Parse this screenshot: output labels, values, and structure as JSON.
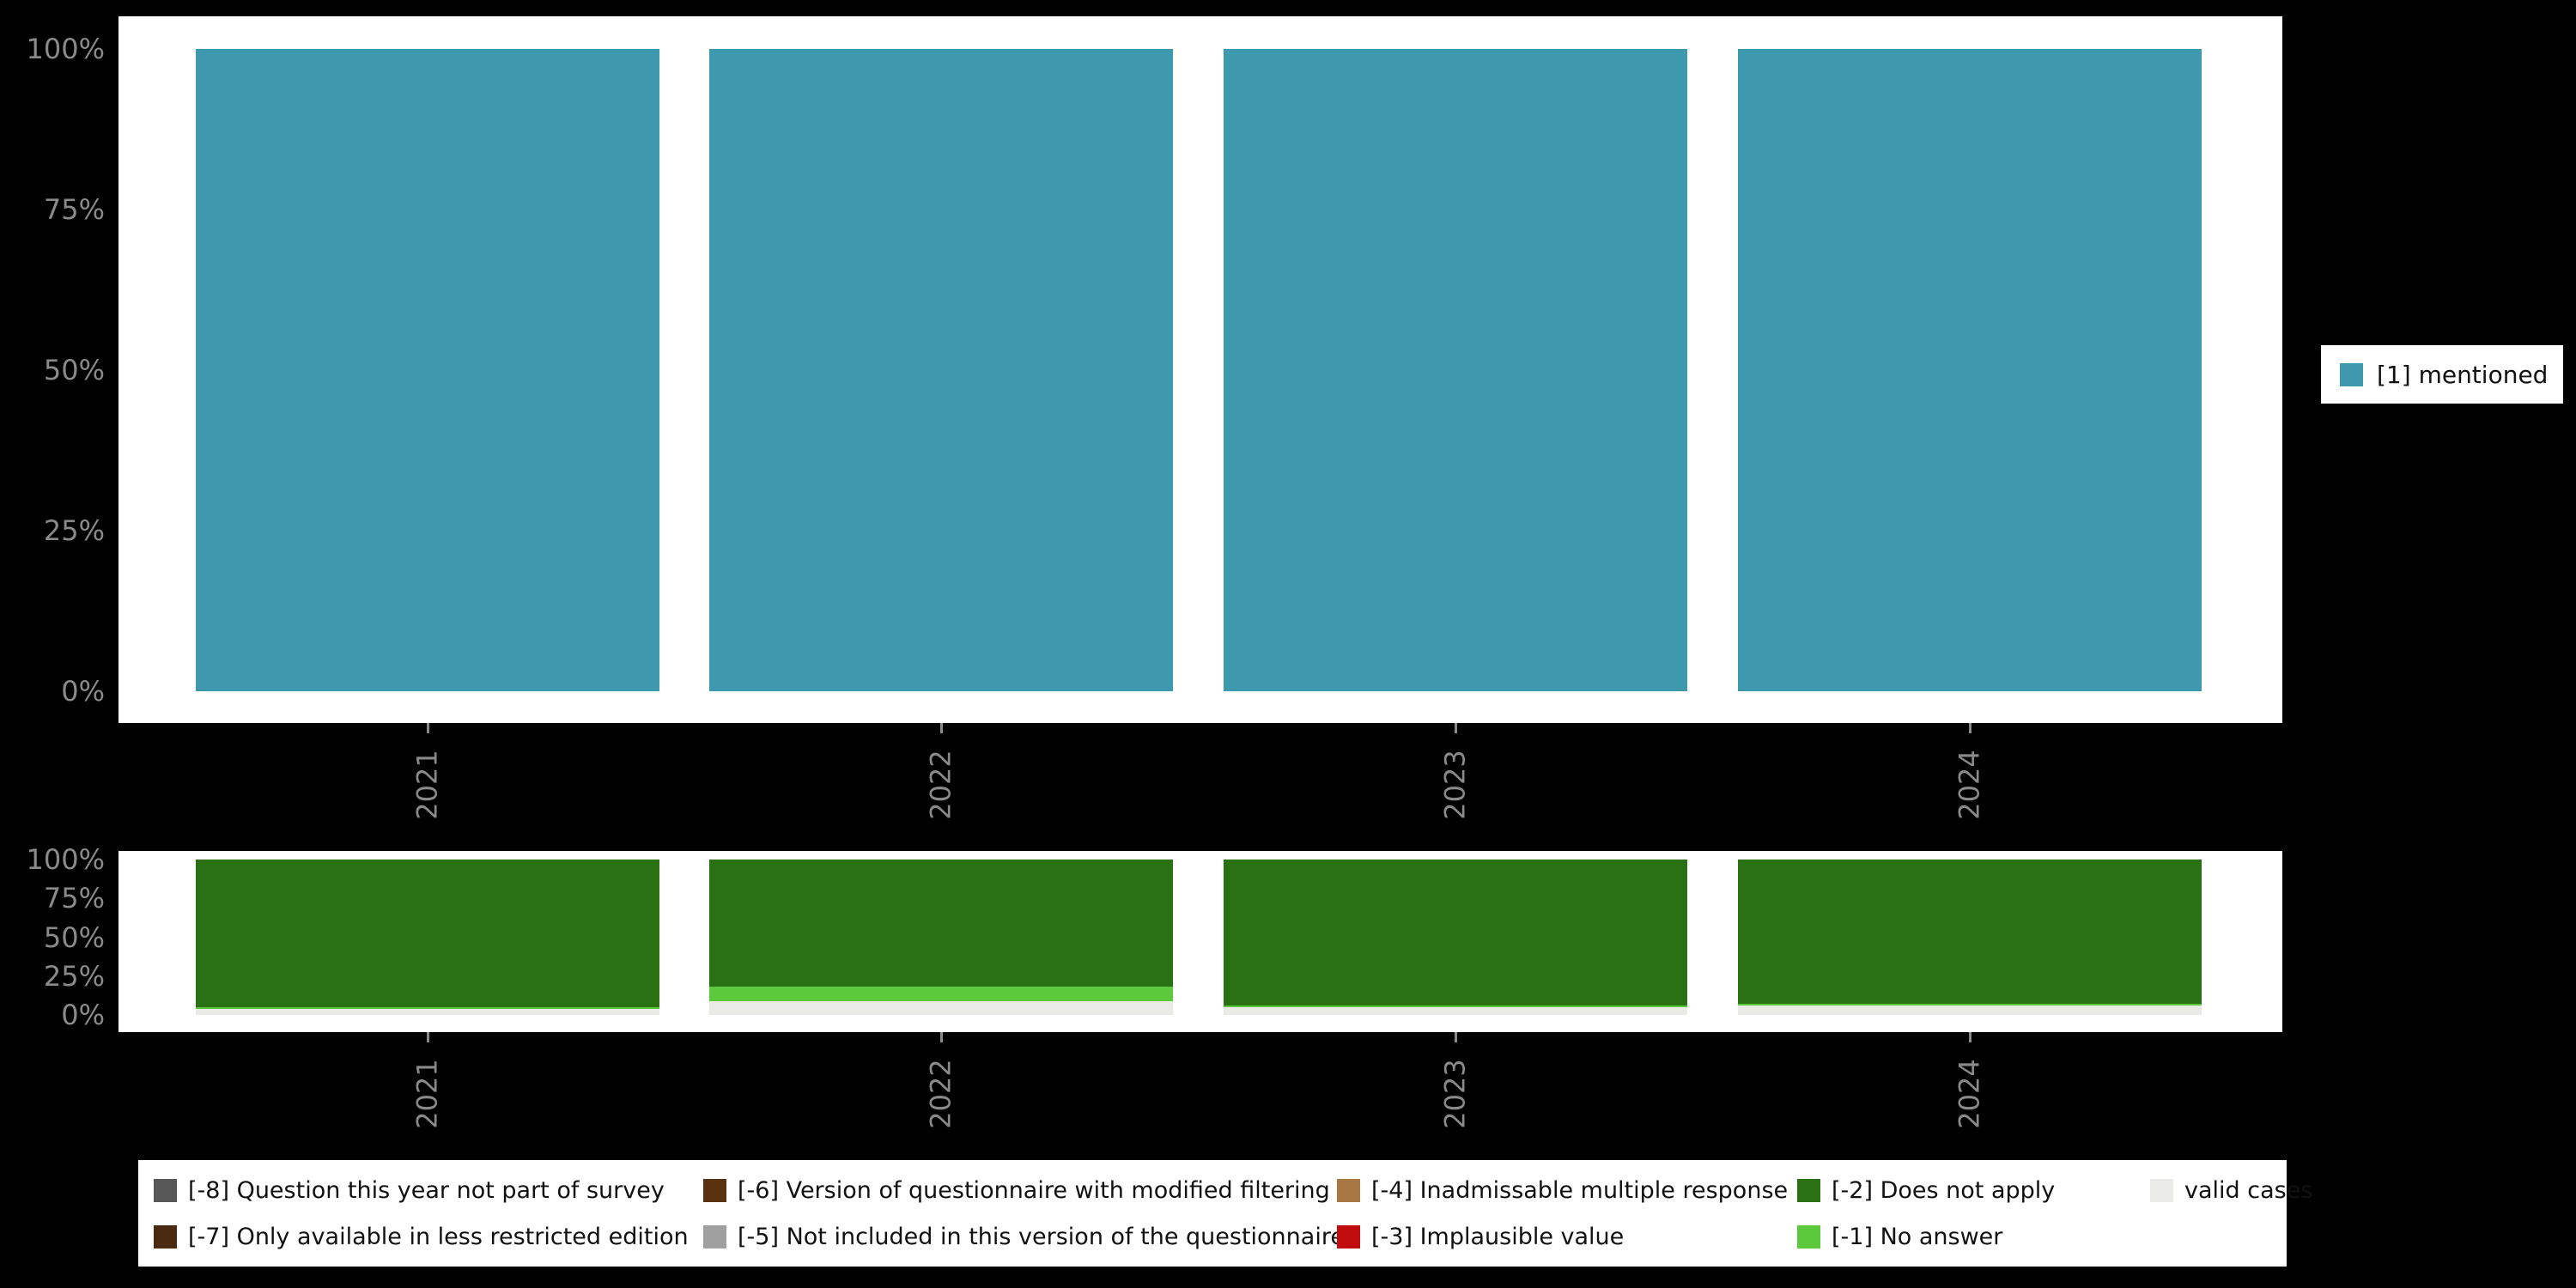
{
  "background": "#000000",
  "panel_background": "#ffffff",
  "axis_text_color": "#8a8a8a",
  "chart_data": [
    {
      "type": "bar",
      "stacked": true,
      "title": "",
      "categories": [
        "2021",
        "2022",
        "2023",
        "2024"
      ],
      "series": [
        {
          "name": "[1] mentioned",
          "color": "#3E99AE",
          "values": [
            100,
            100,
            100,
            100
          ]
        }
      ],
      "ylim": [
        0,
        100
      ],
      "yticks": [
        "0%",
        "25%",
        "50%",
        "75%",
        "100%"
      ],
      "grid": false,
      "legend_position": "right"
    },
    {
      "type": "bar",
      "stacked": true,
      "title": "",
      "categories": [
        "2021",
        "2022",
        "2023",
        "2024"
      ],
      "series": [
        {
          "name": "[-2] Does not apply",
          "color": "#2A7114",
          "values": [
            95,
            82,
            94,
            93
          ]
        },
        {
          "name": "[-1] No answer",
          "color": "#5CC93C",
          "values": [
            1,
            9,
            1,
            1
          ]
        },
        {
          "name": "valid cases",
          "color": "#EAEAE6",
          "values": [
            4,
            9,
            5,
            6
          ]
        }
      ],
      "ylim": [
        0,
        100
      ],
      "yticks": [
        "0%",
        "25%",
        "50%",
        "75%",
        "100%"
      ],
      "grid": false,
      "legend_position": "bottom"
    }
  ],
  "missing_legend": {
    "items": [
      {
        "label": "[-8] Question this year not part of survey",
        "color": "#575757"
      },
      {
        "label": "[-7] Only available in less restricted edition",
        "color": "#4A2A10"
      },
      {
        "label": "[-6] Version of questionnaire with modified filtering",
        "color": "#5A3210"
      },
      {
        "label": "[-5] Not included in this version of the questionnaire",
        "color": "#A0A0A0"
      },
      {
        "label": "[-4] Inadmissable multiple response",
        "color": "#A87844"
      },
      {
        "label": "[-3] Implausible value",
        "color": "#C00C0C"
      },
      {
        "label": "[-2] Does not apply",
        "color": "#2A7114"
      },
      {
        "label": "[-1] No answer",
        "color": "#5CC93C"
      },
      {
        "label": "valid cases",
        "color": "#EAEAE6"
      }
    ]
  }
}
